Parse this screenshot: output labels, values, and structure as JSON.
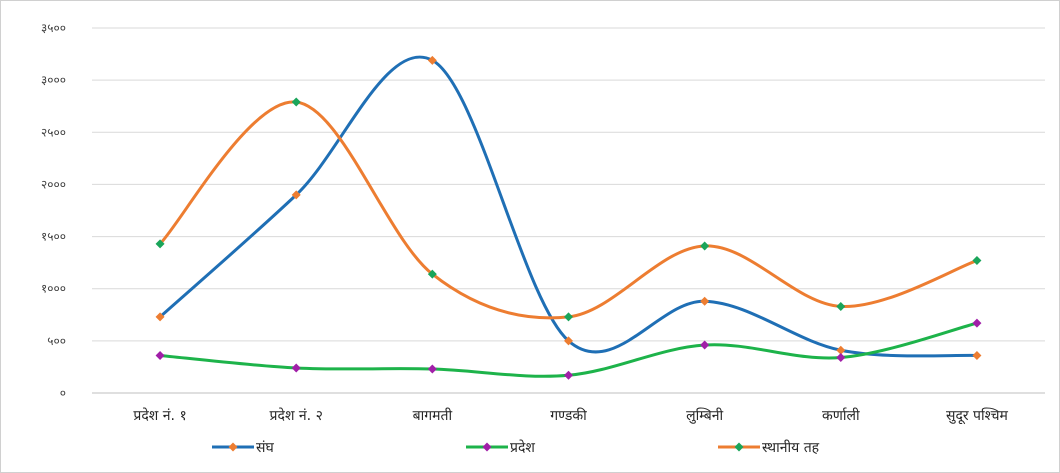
{
  "chart_data": {
    "type": "line",
    "title": "",
    "xlabel": "",
    "ylabel": "",
    "smooth": true,
    "grid": true,
    "legend_position": "bottom",
    "ylim": [
      0,
      3500
    ],
    "y_ticks": [
      0,
      500,
      1000,
      1500,
      2000,
      2500,
      3000,
      3500
    ],
    "y_tick_labels": [
      "०",
      "५००",
      "१०००",
      "१५००",
      "२०००",
      "२५००",
      "३०००",
      "३५००"
    ],
    "categories": [
      "प्रदेश नं. १",
      "प्रदेश नं. २",
      "बागमती",
      "गण्डकी",
      "लुम्बिनी",
      "कर्णाली",
      "सुदूर पश्चिम"
    ],
    "series": [
      {
        "name": "संघ",
        "line_color": "#1f6fb5",
        "values": [
          730,
          1900,
          3190,
          500,
          880,
          410,
          360
        ],
        "marker_colors": [
          "#ed7d31",
          "#ed7d31",
          "#ed7d31",
          "#ed7d31",
          "#ed7d31",
          "#ed7d31",
          "#ed7d31"
        ]
      },
      {
        "name": "प्रदेश",
        "line_color": "#1db34a",
        "values": [
          360,
          240,
          230,
          170,
          460,
          340,
          670
        ],
        "marker_colors": [
          "#a11fa8",
          "#a11fa8",
          "#a11fa8",
          "#a11fa8",
          "#a11fa8",
          "#a11fa8",
          "#a11fa8"
        ]
      },
      {
        "name": "स्थानीय तह",
        "line_color": "#ed7d31",
        "values": [
          1430,
          2790,
          1140,
          730,
          1410,
          830,
          1270
        ],
        "marker_colors": [
          "#1aa55a",
          "#1aa55a",
          "#1aa55a",
          "#1aa55a",
          "#1aa55a",
          "#1aa55a",
          "#1aa55a"
        ]
      }
    ]
  }
}
